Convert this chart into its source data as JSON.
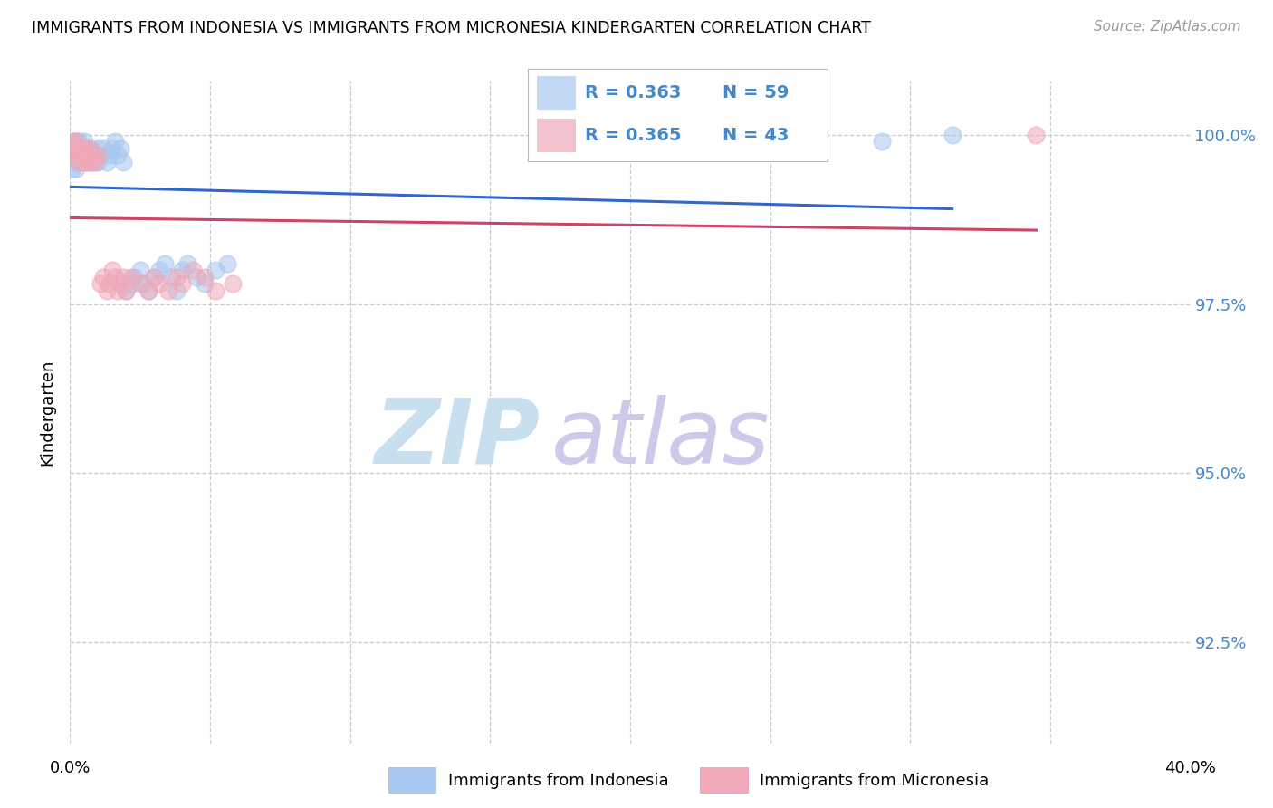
{
  "title": "IMMIGRANTS FROM INDONESIA VS IMMIGRANTS FROM MICRONESIA KINDERGARTEN CORRELATION CHART",
  "source": "Source: ZipAtlas.com",
  "ylabel": "Kindergarten",
  "ytick_labels": [
    "100.0%",
    "97.5%",
    "95.0%",
    "92.5%"
  ],
  "ytick_values": [
    1.0,
    0.975,
    0.95,
    0.925
  ],
  "xlim": [
    0.0,
    0.4
  ],
  "ylim": [
    0.91,
    1.008
  ],
  "legend_r1": "R = 0.363",
  "legend_n1": "N = 59",
  "legend_r2": "R = 0.365",
  "legend_n2": "N = 43",
  "indonesia_color": "#a8c8f0",
  "micronesia_color": "#f0a8b8",
  "indonesia_line_color": "#3366cc",
  "micronesia_line_color": "#cc4466",
  "indonesia_x": [
    0.0,
    0.0,
    0.001,
    0.001,
    0.001,
    0.001,
    0.001,
    0.002,
    0.002,
    0.002,
    0.002,
    0.002,
    0.003,
    0.003,
    0.003,
    0.003,
    0.004,
    0.004,
    0.004,
    0.005,
    0.005,
    0.005,
    0.006,
    0.006,
    0.007,
    0.007,
    0.008,
    0.008,
    0.009,
    0.01,
    0.01,
    0.011,
    0.012,
    0.013,
    0.014,
    0.015,
    0.016,
    0.017,
    0.018,
    0.019,
    0.02,
    0.022,
    0.023,
    0.025,
    0.026,
    0.028,
    0.03,
    0.032,
    0.034,
    0.036,
    0.038,
    0.04,
    0.042,
    0.045,
    0.048,
    0.052,
    0.056,
    0.29,
    0.315
  ],
  "indonesia_y": [
    0.998,
    0.997,
    0.999,
    0.998,
    0.997,
    0.996,
    0.995,
    0.999,
    0.998,
    0.997,
    0.996,
    0.995,
    0.999,
    0.998,
    0.997,
    0.996,
    0.998,
    0.997,
    0.996,
    0.999,
    0.998,
    0.996,
    0.998,
    0.997,
    0.998,
    0.996,
    0.997,
    0.996,
    0.997,
    0.998,
    0.996,
    0.997,
    0.998,
    0.996,
    0.997,
    0.998,
    0.999,
    0.997,
    0.998,
    0.996,
    0.977,
    0.978,
    0.979,
    0.98,
    0.978,
    0.977,
    0.979,
    0.98,
    0.981,
    0.979,
    0.977,
    0.98,
    0.981,
    0.979,
    0.978,
    0.98,
    0.981,
    0.999,
    1.0
  ],
  "micronesia_x": [
    0.0,
    0.001,
    0.001,
    0.001,
    0.002,
    0.002,
    0.002,
    0.003,
    0.003,
    0.004,
    0.004,
    0.005,
    0.005,
    0.006,
    0.006,
    0.007,
    0.007,
    0.008,
    0.009,
    0.01,
    0.011,
    0.012,
    0.013,
    0.014,
    0.015,
    0.016,
    0.017,
    0.018,
    0.019,
    0.02,
    0.022,
    0.025,
    0.028,
    0.03,
    0.032,
    0.035,
    0.038,
    0.04,
    0.044,
    0.048,
    0.052,
    0.058,
    0.345
  ],
  "micronesia_y": [
    0.998,
    0.999,
    0.998,
    0.997,
    0.999,
    0.998,
    0.997,
    0.998,
    0.996,
    0.998,
    0.997,
    0.998,
    0.996,
    0.997,
    0.996,
    0.998,
    0.996,
    0.997,
    0.996,
    0.997,
    0.978,
    0.979,
    0.977,
    0.978,
    0.98,
    0.979,
    0.977,
    0.978,
    0.979,
    0.977,
    0.979,
    0.978,
    0.977,
    0.979,
    0.978,
    0.977,
    0.979,
    0.978,
    0.98,
    0.979,
    0.977,
    0.978,
    1.0
  ],
  "background_color": "#ffffff",
  "watermark_zip": "ZIP",
  "watermark_atlas": "atlas",
  "watermark_color_zip": "#c8dff0",
  "watermark_color_atlas": "#d0c8e8",
  "grid_color": "#cccccc",
  "right_label_color": "#4488cc"
}
